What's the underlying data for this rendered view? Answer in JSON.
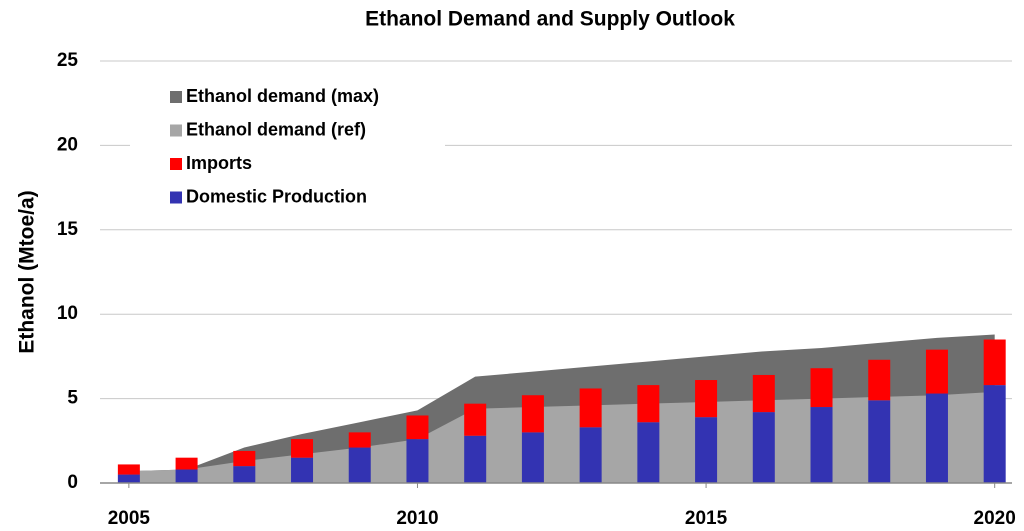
{
  "chart_data": {
    "type": "bar",
    "title": "Ethanol Demand and Supply Outlook",
    "y_label": "Ethanol (Mtoe/a)",
    "x": [
      2005,
      2006,
      2007,
      2008,
      2009,
      2010,
      2011,
      2012,
      2013,
      2014,
      2015,
      2016,
      2017,
      2018,
      2019,
      2020
    ],
    "xlim": [
      2004.5,
      2020.3
    ],
    "xticks": [
      2005,
      2010,
      2015,
      2020
    ],
    "ylim": [
      0,
      25
    ],
    "yticks": [
      0,
      5,
      10,
      15,
      20,
      25
    ],
    "grid": true,
    "legend": "upper left",
    "series": [
      {
        "name": "Ethanol demand (max)",
        "type": "area",
        "color": "#6e6e6e",
        "values": [
          0.7,
          0.8,
          2.1,
          2.9,
          3.6,
          4.3,
          6.3,
          6.6,
          6.9,
          7.2,
          7.5,
          7.8,
          8.0,
          8.3,
          8.6,
          8.8
        ]
      },
      {
        "name": "Ethanol demand (ref)",
        "type": "area",
        "color": "#a6a6a6",
        "values": [
          0.7,
          0.8,
          1.3,
          1.7,
          2.1,
          2.6,
          4.4,
          4.5,
          4.6,
          4.7,
          4.8,
          4.9,
          5.0,
          5.1,
          5.2,
          5.4
        ]
      },
      {
        "name": "Imports",
        "type": "bar",
        "color": "#ff0000",
        "values": [
          0.6,
          0.7,
          0.9,
          1.1,
          0.9,
          1.4,
          1.9,
          2.2,
          2.3,
          2.2,
          2.2,
          2.2,
          2.3,
          2.4,
          2.6,
          2.7
        ]
      },
      {
        "name": "Domestic Production",
        "type": "bar",
        "color": "#3333b2",
        "values": [
          0.5,
          0.8,
          1.0,
          1.5,
          2.1,
          2.6,
          2.8,
          3.0,
          3.3,
          3.6,
          3.9,
          4.2,
          4.5,
          4.9,
          5.3,
          5.8
        ]
      }
    ]
  }
}
